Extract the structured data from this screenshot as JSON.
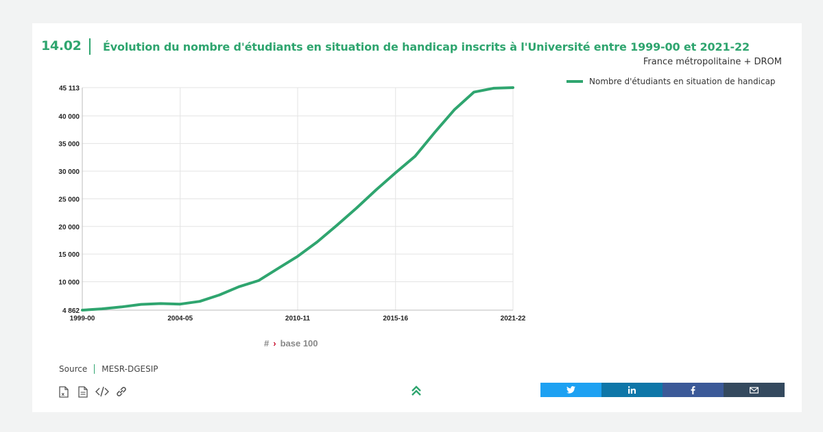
{
  "header": {
    "figure_number": "14.02",
    "title": "Évolution du nombre d'étudiants en situation de handicap inscrits à l'Université entre 1999-00 et 2021-22",
    "subtitle": "France métropolitaine + DROM"
  },
  "legend": {
    "series_label": "Nombre d'étudiants en situation de handicap"
  },
  "controls": {
    "hash": "#",
    "base100_label": "base 100"
  },
  "source": {
    "label": "Source",
    "value": "MESR-DGESIP"
  },
  "toolbar": {
    "icons": [
      "excel-icon",
      "document-icon",
      "code-icon",
      "link-icon"
    ]
  },
  "share": {
    "buttons": [
      {
        "name": "twitter",
        "color": "#1da1f2"
      },
      {
        "name": "linkedin",
        "color": "#0e76a8"
      },
      {
        "name": "facebook",
        "color": "#3b5998"
      },
      {
        "name": "email",
        "color": "#34495e"
      }
    ]
  },
  "colors": {
    "accent": "#2fa56f"
  },
  "chart_data": {
    "type": "line",
    "x": [
      "1999-00",
      "2000-01",
      "2001-02",
      "2002-03",
      "2003-04",
      "2004-05",
      "2005-06",
      "2006-07",
      "2007-08",
      "2008-09",
      "2009-10",
      "2010-11",
      "2011-12",
      "2012-13",
      "2013-14",
      "2014-15",
      "2015-16",
      "2016-17",
      "2017-18",
      "2018-19",
      "2019-20",
      "2020-21",
      "2021-22"
    ],
    "x_tick_labels": [
      "1999-00",
      "2004-05",
      "2010-11",
      "2015-16",
      "2021-22"
    ],
    "series": [
      {
        "name": "Nombre d'étudiants en situation de handicap",
        "values": [
          4862,
          5100,
          5450,
          5900,
          6050,
          5950,
          6450,
          7600,
          9100,
          10200,
          12400,
          14600,
          17200,
          20200,
          23300,
          26600,
          29700,
          32700,
          37000,
          41100,
          44300,
          45000,
          45113
        ]
      }
    ],
    "y_ticks": [
      4862,
      10000,
      15000,
      20000,
      25000,
      30000,
      35000,
      40000,
      45113
    ],
    "y_tick_labels": [
      "4 862",
      "10 000",
      "15 000",
      "20 000",
      "25 000",
      "30 000",
      "35 000",
      "40 000",
      "45 113"
    ],
    "ylim": [
      4862,
      45113
    ],
    "grid": true,
    "legend_position": "top-right"
  }
}
